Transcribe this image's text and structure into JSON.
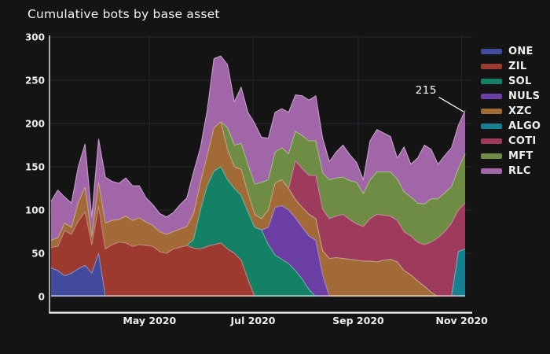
{
  "title": "Cumulative bots by base asset",
  "annotation": {
    "text": "215",
    "value": 215,
    "date": "2020-11-03"
  },
  "colors": {
    "background": "#141414",
    "grid": "#272730",
    "axis": "#ffffff",
    "tick_text": "#eeeeee",
    "title_text": "#f2f2f2"
  },
  "chart_data": {
    "type": "area",
    "stacked": true,
    "title": "Cumulative bots by base asset",
    "xlabel": "",
    "ylabel": "",
    "ylim": [
      0,
      300
    ],
    "yticks": [
      0,
      50,
      100,
      150,
      200,
      250,
      300
    ],
    "xticks": [
      {
        "date": "2020-05-01",
        "label": "May 2020"
      },
      {
        "date": "2020-07-01",
        "label": "Jul 2020"
      },
      {
        "date": "2020-09-01",
        "label": "Sep 2020"
      },
      {
        "date": "2020-11-01",
        "label": "Nov 2020"
      }
    ],
    "grid": true,
    "legend_position": "right",
    "dates": [
      "2020-03-04",
      "2020-03-08",
      "2020-03-12",
      "2020-03-16",
      "2020-03-20",
      "2020-03-24",
      "2020-03-28",
      "2020-04-01",
      "2020-04-05",
      "2020-04-09",
      "2020-04-13",
      "2020-04-17",
      "2020-04-21",
      "2020-04-25",
      "2020-04-29",
      "2020-05-03",
      "2020-05-07",
      "2020-05-11",
      "2020-05-15",
      "2020-05-19",
      "2020-05-23",
      "2020-05-27",
      "2020-05-31",
      "2020-06-04",
      "2020-06-08",
      "2020-06-12",
      "2020-06-16",
      "2020-06-20",
      "2020-06-24",
      "2020-06-28",
      "2020-07-02",
      "2020-07-06",
      "2020-07-10",
      "2020-07-14",
      "2020-07-18",
      "2020-07-22",
      "2020-07-26",
      "2020-07-30",
      "2020-08-03",
      "2020-08-07",
      "2020-08-11",
      "2020-08-15",
      "2020-08-19",
      "2020-08-23",
      "2020-08-27",
      "2020-08-31",
      "2020-09-04",
      "2020-09-08",
      "2020-09-12",
      "2020-09-16",
      "2020-09-20",
      "2020-09-24",
      "2020-09-28",
      "2020-10-02",
      "2020-10-06",
      "2020-10-10",
      "2020-10-14",
      "2020-10-18",
      "2020-10-22",
      "2020-10-26",
      "2020-10-30",
      "2020-11-03"
    ],
    "series": [
      {
        "name": "ONE",
        "color": "#414a9b",
        "values": [
          33,
          30,
          24,
          27,
          32,
          36,
          27,
          50,
          0,
          0,
          0,
          0,
          0,
          0,
          0,
          0,
          0,
          0,
          0,
          0,
          0,
          0,
          0,
          0,
          0,
          0,
          0,
          0,
          0,
          0,
          0,
          0,
          0,
          0,
          0,
          0,
          0,
          0,
          0,
          0,
          0,
          0,
          0,
          0,
          0,
          0,
          0,
          0,
          0,
          0,
          0,
          0,
          0,
          0,
          0,
          0,
          0,
          0,
          0,
          0,
          0,
          0
        ]
      },
      {
        "name": "ZIL",
        "color": "#9c3a30",
        "values": [
          24,
          28,
          52,
          45,
          55,
          62,
          33,
          54,
          55,
          60,
          63,
          62,
          58,
          60,
          59,
          58,
          52,
          50,
          55,
          57,
          59,
          56,
          55,
          58,
          60,
          62,
          55,
          50,
          42,
          20,
          0,
          0,
          0,
          0,
          0,
          0,
          0,
          0,
          0,
          0,
          0,
          0,
          0,
          0,
          0,
          0,
          0,
          0,
          0,
          0,
          0,
          0,
          0,
          0,
          0,
          0,
          0,
          0,
          0,
          0,
          0,
          0
        ]
      },
      {
        "name": "SOL",
        "color": "#148066",
        "values": [
          0,
          0,
          0,
          0,
          0,
          0,
          0,
          0,
          0,
          0,
          0,
          0,
          0,
          0,
          0,
          0,
          0,
          0,
          0,
          0,
          0,
          10,
          45,
          70,
          85,
          88,
          80,
          75,
          75,
          78,
          80,
          77,
          60,
          48,
          43,
          38,
          30,
          20,
          8,
          0,
          0,
          0,
          0,
          0,
          0,
          0,
          0,
          0,
          0,
          0,
          0,
          0,
          0,
          0,
          0,
          0,
          0,
          0,
          0,
          0,
          0,
          0
        ]
      },
      {
        "name": "NULS",
        "color": "#6b3ea3",
        "values": [
          0,
          0,
          0,
          0,
          0,
          0,
          0,
          0,
          0,
          0,
          0,
          0,
          0,
          0,
          0,
          0,
          0,
          0,
          0,
          0,
          0,
          0,
          0,
          0,
          0,
          0,
          0,
          0,
          0,
          0,
          0,
          0,
          20,
          55,
          62,
          62,
          61,
          60,
          62,
          65,
          25,
          0,
          0,
          0,
          0,
          0,
          0,
          0,
          0,
          0,
          0,
          0,
          0,
          0,
          0,
          0,
          0,
          0,
          0,
          0,
          0,
          0
        ]
      },
      {
        "name": "XZC",
        "color": "#a16a36",
        "values": [
          8,
          10,
          9,
          8,
          22,
          28,
          10,
          28,
          30,
          28,
          26,
          31,
          30,
          31,
          27,
          24,
          23,
          22,
          20,
          21,
          22,
          30,
          32,
          35,
          50,
          52,
          35,
          25,
          30,
          22,
          15,
          13,
          20,
          28,
          30,
          25,
          21,
          23,
          25,
          25,
          28,
          44,
          45,
          44,
          43,
          42,
          41,
          41,
          40,
          42,
          43,
          40,
          30,
          25,
          18,
          12,
          5,
          0,
          0,
          0,
          0,
          0
        ]
      },
      {
        "name": "ALGO",
        "color": "#15808f",
        "values": [
          0,
          0,
          0,
          0,
          0,
          0,
          0,
          0,
          0,
          0,
          0,
          0,
          0,
          0,
          0,
          0,
          0,
          0,
          0,
          0,
          0,
          0,
          0,
          0,
          0,
          0,
          0,
          0,
          0,
          0,
          0,
          0,
          0,
          0,
          0,
          0,
          0,
          0,
          0,
          0,
          0,
          0,
          0,
          0,
          0,
          0,
          0,
          0,
          0,
          0,
          0,
          0,
          0,
          0,
          0,
          0,
          0,
          0,
          0,
          0,
          52,
          55
        ]
      },
      {
        "name": "COTI",
        "color": "#9e3a5c",
        "values": [
          0,
          0,
          0,
          0,
          0,
          0,
          0,
          0,
          0,
          0,
          0,
          0,
          0,
          0,
          0,
          0,
          0,
          0,
          0,
          0,
          0,
          0,
          0,
          0,
          0,
          0,
          0,
          0,
          0,
          0,
          0,
          0,
          0,
          0,
          0,
          0,
          45,
          45,
          45,
          50,
          48,
          46,
          48,
          51,
          46,
          42,
          40,
          49,
          55,
          52,
          50,
          48,
          45,
          45,
          45,
          48,
          58,
          68,
          75,
          85,
          48,
          53
        ]
      },
      {
        "name": "MFT",
        "color": "#6e8c44",
        "values": [
          0,
          0,
          0,
          0,
          0,
          0,
          0,
          0,
          0,
          0,
          0,
          0,
          0,
          0,
          0,
          0,
          0,
          0,
          0,
          0,
          0,
          0,
          0,
          0,
          0,
          0,
          25,
          25,
          30,
          33,
          35,
          42,
          35,
          36,
          37,
          40,
          34,
          38,
          40,
          40,
          42,
          45,
          44,
          43,
          45,
          48,
          38,
          45,
          49,
          50,
          51,
          48,
          46,
          45,
          45,
          47,
          50,
          45,
          45,
          42,
          48,
          57
        ]
      },
      {
        "name": "RLC",
        "color": "#a066a8",
        "values": [
          45,
          55,
          30,
          28,
          41,
          50,
          22,
          50,
          53,
          45,
          42,
          44,
          40,
          37,
          28,
          24,
          21,
          20,
          22,
          28,
          33,
          48,
          40,
          52,
          80,
          76,
          73,
          50,
          65,
          60,
          70,
          52,
          48,
          46,
          45,
          48,
          42,
          46,
          47,
          52,
          40,
          21,
          30,
          37,
          30,
          23,
          16,
          45,
          49,
          45,
          41,
          24,
          52,
          38,
          52,
          68,
          57,
          40,
          43,
          45,
          50,
          50
        ]
      }
    ]
  }
}
